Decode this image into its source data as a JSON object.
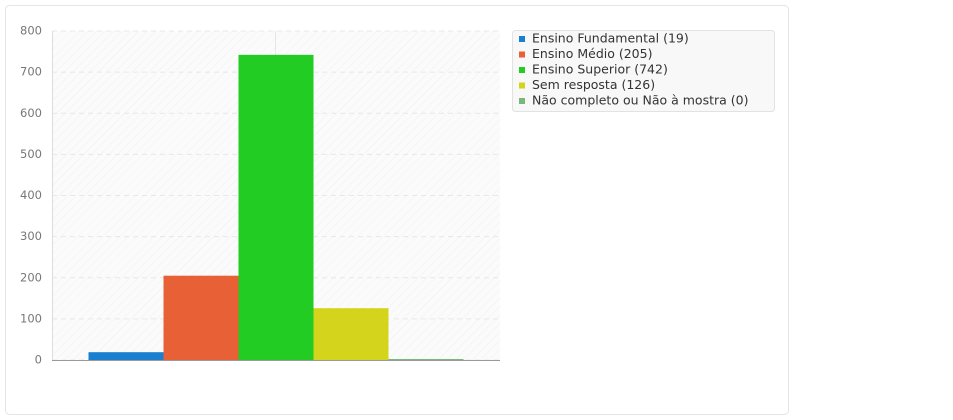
{
  "chart_data": {
    "type": "bar",
    "categories": [
      null
    ],
    "series": [
      {
        "name": "Ensino Fundamental (19)",
        "color": "#1a7fcf",
        "values": [
          19
        ]
      },
      {
        "name": "Ensino Médio (205)",
        "color": "#e86035",
        "values": [
          205
        ]
      },
      {
        "name": "Ensino Superior (742)",
        "color": "#22cc22",
        "values": [
          742
        ]
      },
      {
        "name": "Sem resposta (126)",
        "color": "#d4d41c",
        "values": [
          126
        ]
      },
      {
        "name": "Não completo ou Não à mostra (0)",
        "color": "#7ab87a",
        "values": [
          0
        ]
      }
    ],
    "ylim": [
      0,
      800
    ],
    "yticks": [
      0,
      100,
      200,
      300,
      400,
      500,
      600,
      700,
      800
    ],
    "grid": true,
    "legend": "right"
  }
}
